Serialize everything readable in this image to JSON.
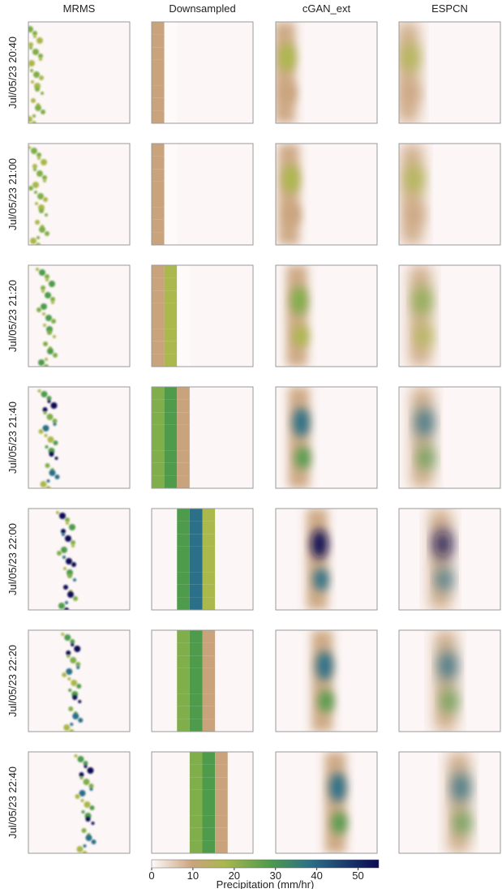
{
  "columns": [
    "MRMS",
    "Downsampled",
    "cGAN_ext",
    "ESPCN"
  ],
  "rows": [
    "Jul/05/23 20:40",
    "Jul/05/23 21:00",
    "Jul/05/23 21:20",
    "Jul/05/23 21:40",
    "Jul/05/23 22:00",
    "Jul/05/23 22:20",
    "Jul/05/23 22:40"
  ],
  "colorbar": {
    "label": "Precipitation (mm/hr)",
    "xlim": [
      0,
      55
    ],
    "xticks": [
      0,
      10,
      20,
      30,
      40,
      50
    ]
  }
}
